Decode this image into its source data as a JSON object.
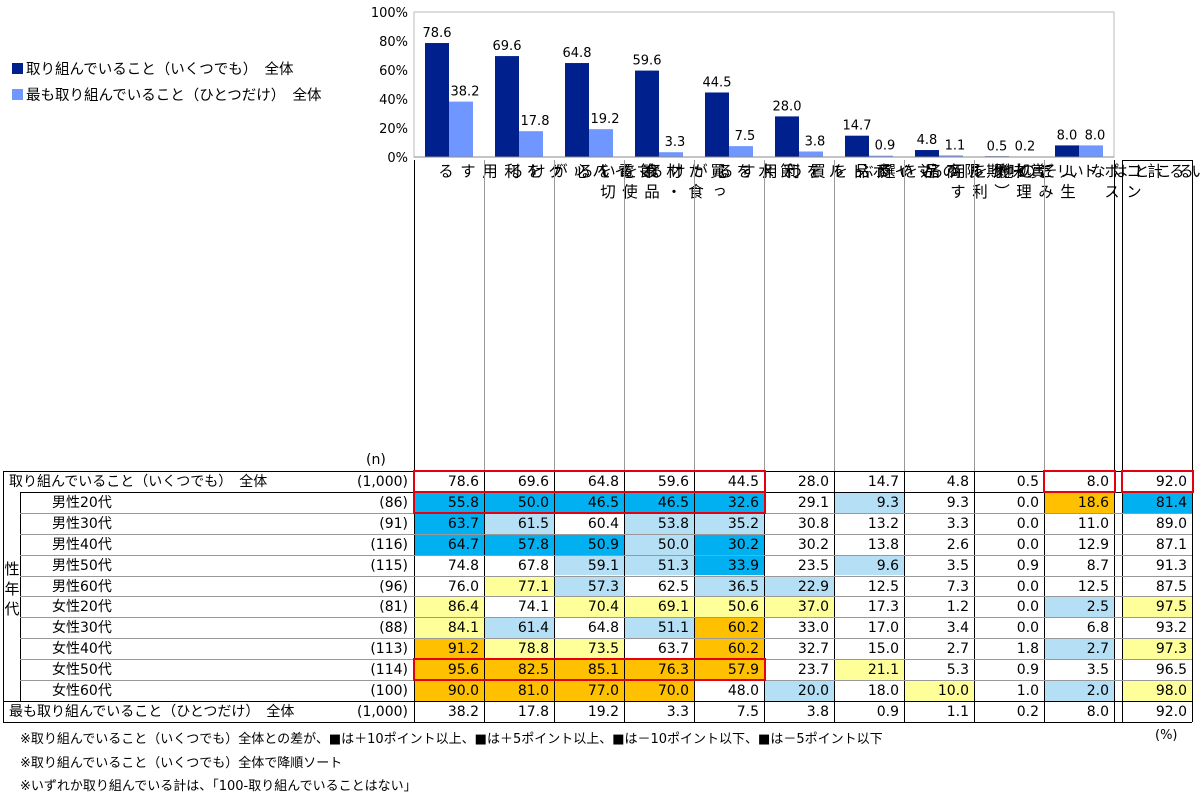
{
  "legend": {
    "series1": "取り組んでいること（いくつでも）　全体",
    "series2": "最も取り組んでいること（ひとつだけ）　全体",
    "color1": "#00208e",
    "color2": "#6f97ff"
  },
  "chart_data": {
    "type": "bar",
    "categories": [
      "マイバッグを利用する",
      "節電を心がける",
      "買った食材・食品を使い切る",
      "節水を心がける",
      "マイボトルを利用する",
      "賞味期限の近い商品を買う",
      "リサイクル商品を選ぶ",
      "コンポスト（生ごみ処理機）を利用する",
      "その他",
      "取り組んでいることはない"
    ],
    "series": [
      {
        "name": "取り組んでいること（いくつでも）　全体",
        "values": [
          78.6,
          69.6,
          64.8,
          59.6,
          44.5,
          28.0,
          14.7,
          4.8,
          0.5,
          8.0
        ]
      },
      {
        "name": "最も取り組んでいること（ひとつだけ）　全体",
        "values": [
          38.2,
          17.8,
          19.2,
          3.3,
          7.5,
          3.8,
          0.9,
          1.1,
          0.2,
          8.0
        ]
      }
    ],
    "value_labels": [
      [
        "78.6",
        "69.6",
        "64.8",
        "59.6",
        "44.5",
        "28.0",
        "14.7",
        "4.8",
        "0.5",
        "8.0"
      ],
      [
        "38.2",
        "17.8",
        "19.2",
        "3.3",
        "7.5",
        "3.8",
        "0.9",
        "1.1",
        "0.2",
        "8.0"
      ]
    ],
    "ylim": [
      0,
      100
    ],
    "yticks": [
      "0%",
      "20%",
      "40%",
      "60%",
      "80%",
      "100%"
    ],
    "ytick_values": [
      0,
      20,
      40,
      60,
      80,
      100
    ]
  },
  "column_headers": [
    "マイバッグを利用する",
    "節電を心がける",
    "買った食材・食品を使い切る",
    "節水を心がける",
    "マイボトルを利用する",
    "賞味期限の近い商品を買う",
    "リサイクル商品を選ぶ",
    "コンポスト（生ごみ処理機）を利用する",
    "その他",
    "取り組んでいることはない"
  ],
  "total_header": "いずれか取り組んでいる計",
  "n_header": "(n)",
  "group_label": "性年代",
  "table": {
    "rows": [
      {
        "label": "取り組んでいること（いくつでも）　全体",
        "n": "(1,000)",
        "values": [
          "78.6",
          "69.6",
          "64.8",
          "59.6",
          "44.5",
          "28.0",
          "14.7",
          "4.8",
          "0.5",
          "8.0"
        ],
        "total": "92.0",
        "fills": [
          "",
          "",
          "",
          "",
          "",
          "",
          "",
          "",
          "",
          ""
        ],
        "total_fill": ""
      },
      {
        "label": "男性20代",
        "n": "(86)",
        "values": [
          "55.8",
          "50.0",
          "46.5",
          "46.5",
          "32.6",
          "29.1",
          "9.3",
          "9.3",
          "0.0",
          "18.6"
        ],
        "total": "81.4",
        "fills": [
          "m10",
          "m10",
          "m10",
          "m10",
          "m10",
          "",
          "m5",
          "",
          "",
          "p10"
        ],
        "total_fill": "m10"
      },
      {
        "label": "男性30代",
        "n": "(91)",
        "values": [
          "63.7",
          "61.5",
          "60.4",
          "53.8",
          "35.2",
          "30.8",
          "13.2",
          "3.3",
          "0.0",
          "11.0"
        ],
        "total": "89.0",
        "fills": [
          "m10",
          "m5",
          "",
          "m5",
          "m5",
          "",
          "",
          "",
          "",
          ""
        ],
        "total_fill": ""
      },
      {
        "label": "男性40代",
        "n": "(116)",
        "values": [
          "64.7",
          "57.8",
          "50.9",
          "50.0",
          "30.2",
          "30.2",
          "13.8",
          "2.6",
          "0.0",
          "12.9"
        ],
        "total": "87.1",
        "fills": [
          "m10",
          "m10",
          "m10",
          "m5",
          "m10",
          "",
          "",
          "",
          "",
          ""
        ],
        "total_fill": ""
      },
      {
        "label": "男性50代",
        "n": "(115)",
        "values": [
          "74.8",
          "67.8",
          "59.1",
          "51.3",
          "33.9",
          "23.5",
          "9.6",
          "3.5",
          "0.9",
          "8.7"
        ],
        "total": "91.3",
        "fills": [
          "",
          "",
          "m5",
          "m5",
          "m10",
          "",
          "m5",
          "",
          "",
          ""
        ],
        "total_fill": ""
      },
      {
        "label": "男性60代",
        "n": "(96)",
        "values": [
          "76.0",
          "77.1",
          "57.3",
          "62.5",
          "36.5",
          "22.9",
          "12.5",
          "7.3",
          "0.0",
          "12.5"
        ],
        "total": "87.5",
        "fills": [
          "",
          "p5",
          "m5",
          "",
          "m5",
          "m5",
          "",
          "",
          "",
          ""
        ],
        "total_fill": ""
      },
      {
        "label": "女性20代",
        "n": "(81)",
        "values": [
          "86.4",
          "74.1",
          "70.4",
          "69.1",
          "50.6",
          "37.0",
          "17.3",
          "1.2",
          "0.0",
          "2.5"
        ],
        "total": "97.5",
        "fills": [
          "p5",
          "",
          "p5",
          "p5",
          "p5",
          "p5",
          "",
          "",
          "",
          "m5"
        ],
        "total_fill": "p5"
      },
      {
        "label": "女性30代",
        "n": "(88)",
        "values": [
          "84.1",
          "61.4",
          "64.8",
          "51.1",
          "60.2",
          "33.0",
          "17.0",
          "3.4",
          "0.0",
          "6.8"
        ],
        "total": "93.2",
        "fills": [
          "p5",
          "m5",
          "",
          "m5",
          "p10",
          "",
          "",
          "",
          "",
          ""
        ],
        "total_fill": ""
      },
      {
        "label": "女性40代",
        "n": "(113)",
        "values": [
          "91.2",
          "78.8",
          "73.5",
          "63.7",
          "60.2",
          "32.7",
          "15.0",
          "2.7",
          "1.8",
          "2.7"
        ],
        "total": "97.3",
        "fills": [
          "p10",
          "p5",
          "p5",
          "",
          "p10",
          "",
          "",
          "",
          "",
          "m5"
        ],
        "total_fill": "p5"
      },
      {
        "label": "女性50代",
        "n": "(114)",
        "values": [
          "95.6",
          "82.5",
          "85.1",
          "76.3",
          "57.9",
          "23.7",
          "21.1",
          "5.3",
          "0.9",
          "3.5"
        ],
        "total": "96.5",
        "fills": [
          "p10",
          "p10",
          "p10",
          "p10",
          "p10",
          "",
          "p5",
          "",
          "",
          ""
        ],
        "total_fill": ""
      },
      {
        "label": "女性60代",
        "n": "(100)",
        "values": [
          "90.0",
          "81.0",
          "77.0",
          "70.0",
          "48.0",
          "20.0",
          "18.0",
          "10.0",
          "1.0",
          "2.0"
        ],
        "total": "98.0",
        "fills": [
          "p10",
          "p10",
          "p10",
          "p10",
          "",
          "m5",
          "",
          "p5",
          "",
          "m5"
        ],
        "total_fill": "p5"
      },
      {
        "label": "最も取り組んでいること（ひとつだけ）　全体",
        "n": "(1,000)",
        "values": [
          "38.2",
          "17.8",
          "19.2",
          "3.3",
          "7.5",
          "3.8",
          "0.9",
          "1.1",
          "0.2",
          "8.0"
        ],
        "total": "92.0",
        "fills": [
          "",
          "",
          "",
          "",
          "",
          "",
          "",
          "",
          "",
          ""
        ],
        "total_fill": ""
      }
    ]
  },
  "highlight_colors": {
    "p10": "#ffc000",
    "p5": "#ffff99",
    "m10": "#00b0f0",
    "m5": "#b4dff5"
  },
  "notes": [
    "※取り組んでいること（いくつでも）全体との差が、■は＋10ポイント以上、■は＋5ポイント以上、■は－10ポイント以下、■は－5ポイント以下",
    "※取り組んでいること（いくつでも）全体で降順ソート",
    "※いずれか取り組んでいる計は、「100-取り組んでいることはない」"
  ],
  "unit": "(%)"
}
